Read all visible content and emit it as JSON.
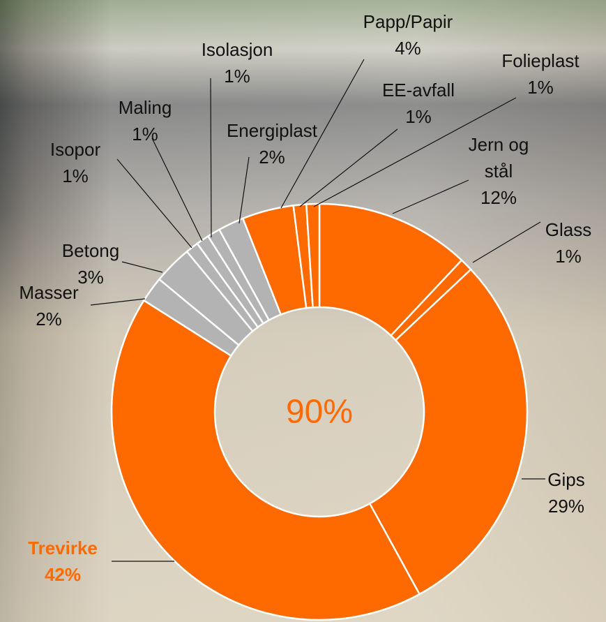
{
  "chart_data": {
    "type": "donut",
    "center_label": "90%",
    "categories": [
      "Jern og stål",
      "Glass",
      "Gips",
      "Trevirke",
      "Masser",
      "Betong",
      "Isopor",
      "Maling",
      "Isolasjon",
      "Energiplast",
      "Papp/Papir",
      "EE-avfall",
      "Folieplast"
    ],
    "values": [
      12,
      1,
      29,
      42,
      2,
      3,
      1,
      1,
      1,
      2,
      4,
      1,
      1
    ],
    "value_labels": [
      "12%",
      "1%",
      "29%",
      "42%",
      "2%",
      "3%",
      "1%",
      "1%",
      "1%",
      "2%",
      "4%",
      "1%",
      "1%"
    ],
    "colors": [
      "#ff6a00",
      "#ff6a00",
      "#ff6a00",
      "#ff6a00",
      "#b3b3b3",
      "#b3b3b3",
      "#b3b3b3",
      "#b3b3b3",
      "#b3b3b3",
      "#b3b3b3",
      "#ff6a00",
      "#ff6a00",
      "#ff6a00"
    ]
  }
}
